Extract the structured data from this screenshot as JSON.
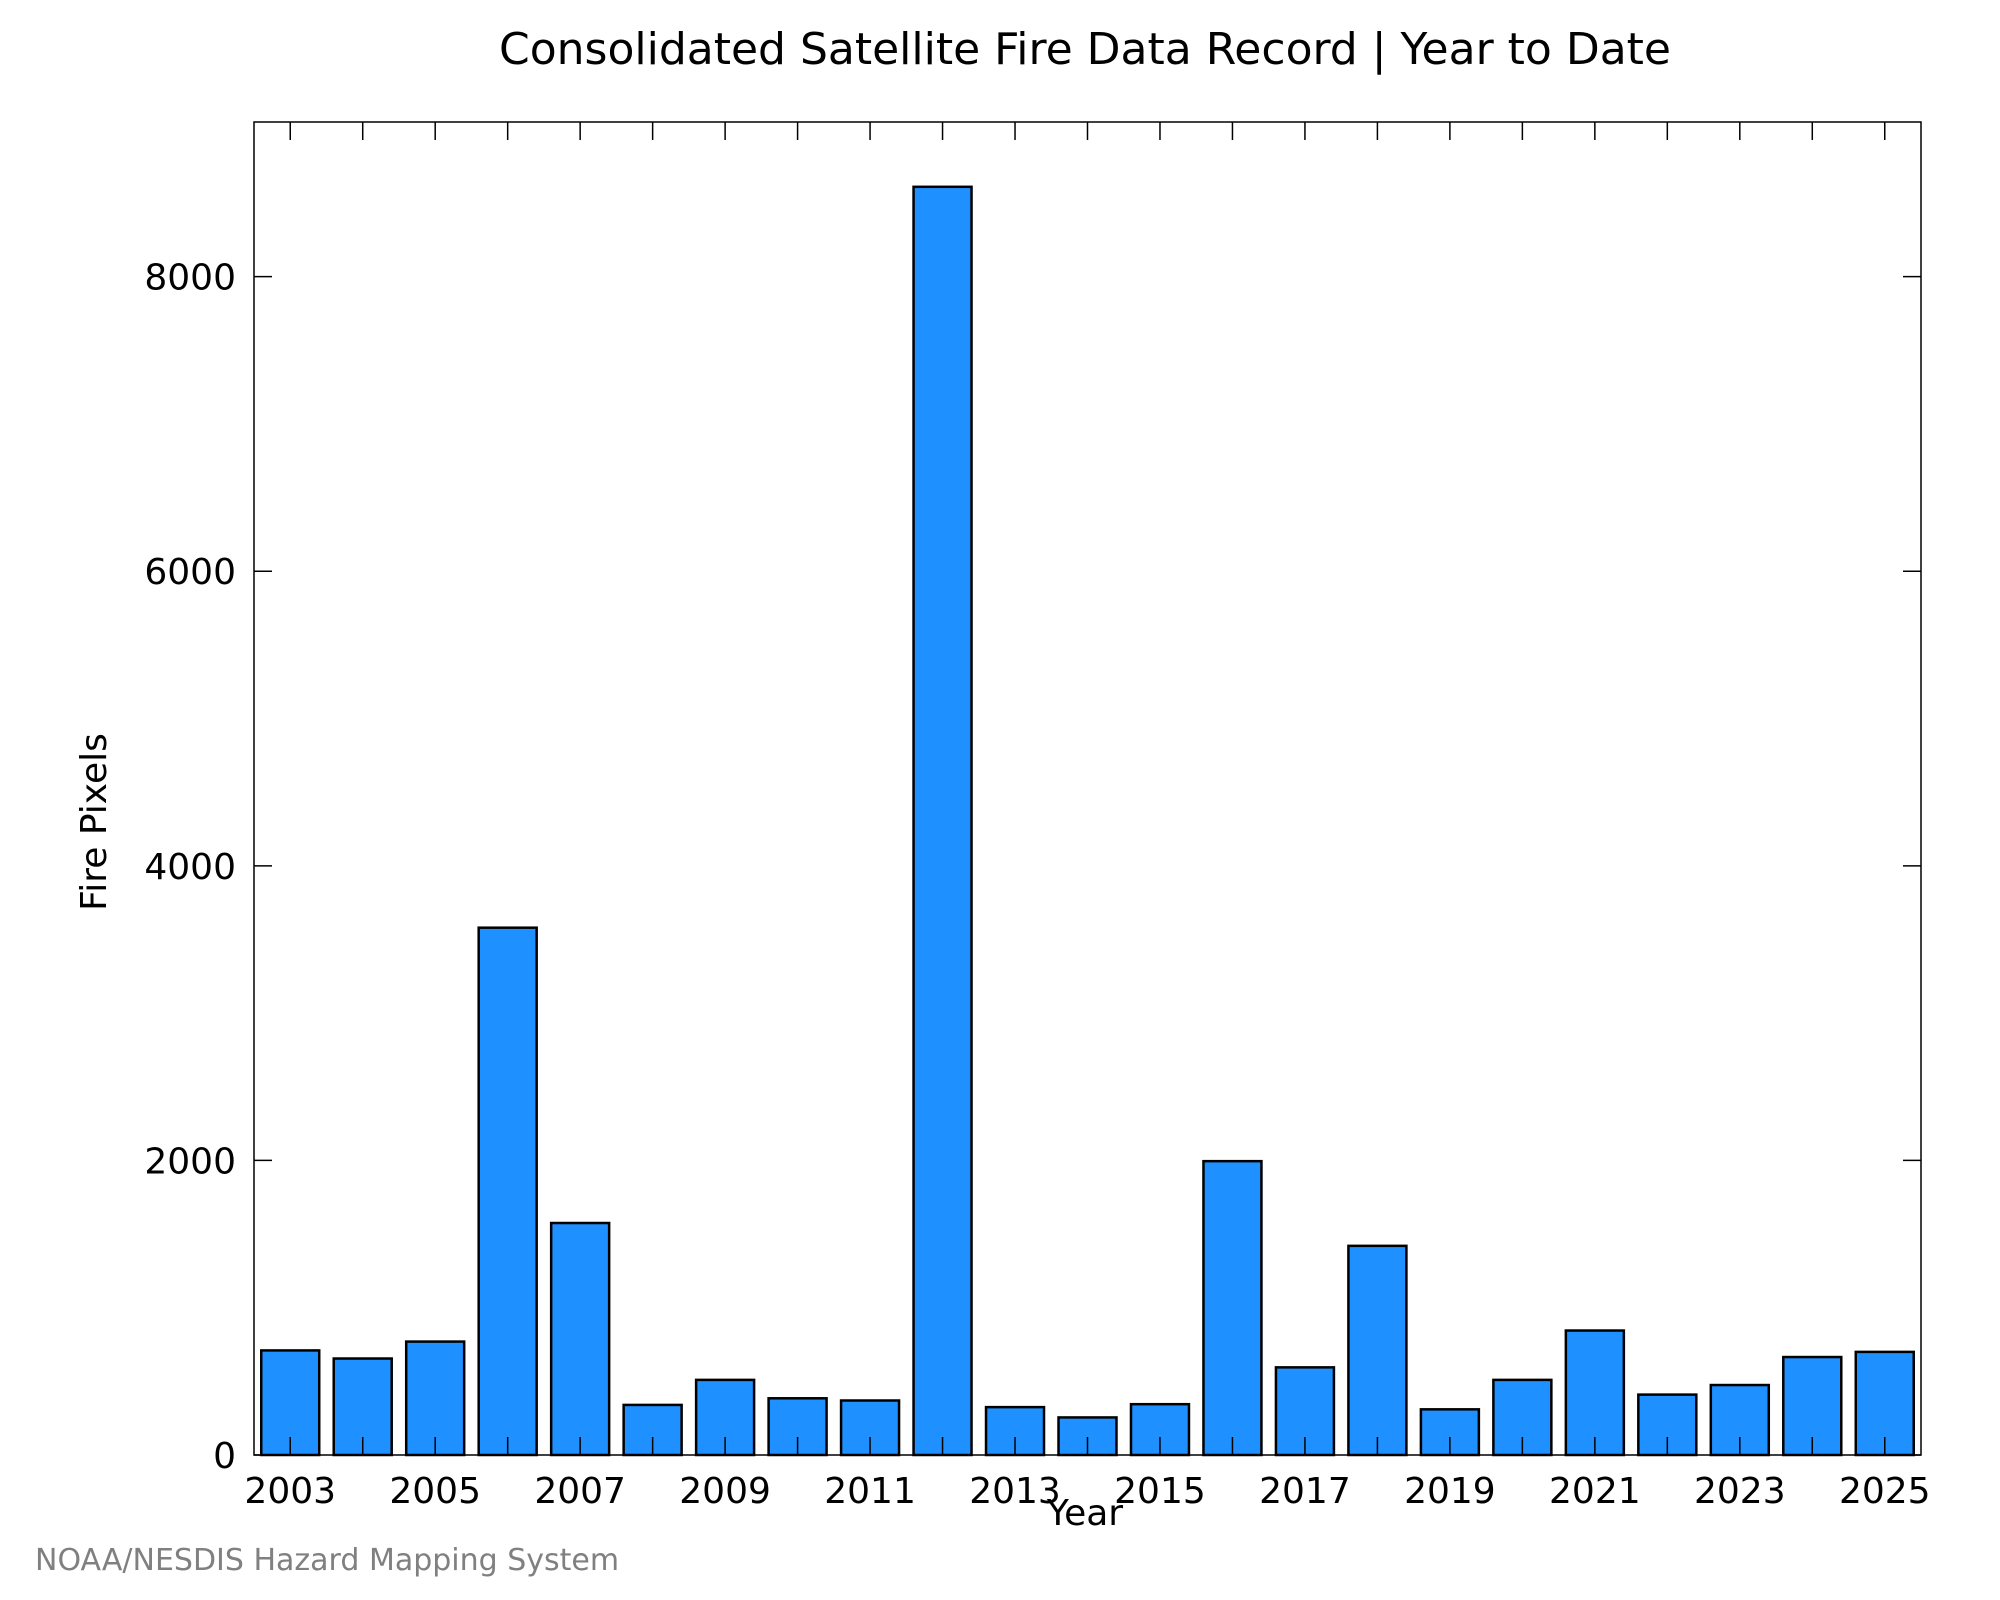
{
  "chart_data": {
    "type": "bar",
    "title": "Consolidated Satellite Fire Data Record | Year to Date",
    "xlabel": "Year",
    "ylabel": "Fire Pixels",
    "categories": [
      2003,
      2004,
      2005,
      2006,
      2007,
      2008,
      2009,
      2010,
      2011,
      2012,
      2013,
      2014,
      2015,
      2016,
      2017,
      2018,
      2019,
      2020,
      2021,
      2022,
      2023,
      2024,
      2025
    ],
    "values": [
      710,
      655,
      770,
      3580,
      1575,
      340,
      510,
      385,
      370,
      8610,
      325,
      255,
      345,
      1995,
      595,
      1420,
      310,
      510,
      845,
      410,
      475,
      665,
      700
    ],
    "ylim": [
      0,
      9050
    ],
    "yticks": [
      0,
      2000,
      4000,
      6000,
      8000
    ],
    "xticks": [
      2003,
      2005,
      2007,
      2009,
      2011,
      2013,
      2015,
      2017,
      2019,
      2021,
      2023,
      2025
    ],
    "bar_color": "#1E90FF",
    "bar_edge_color": "#000000",
    "grid": false,
    "legend": "none"
  },
  "credit": "NOAA/NESDIS Hazard Mapping System"
}
